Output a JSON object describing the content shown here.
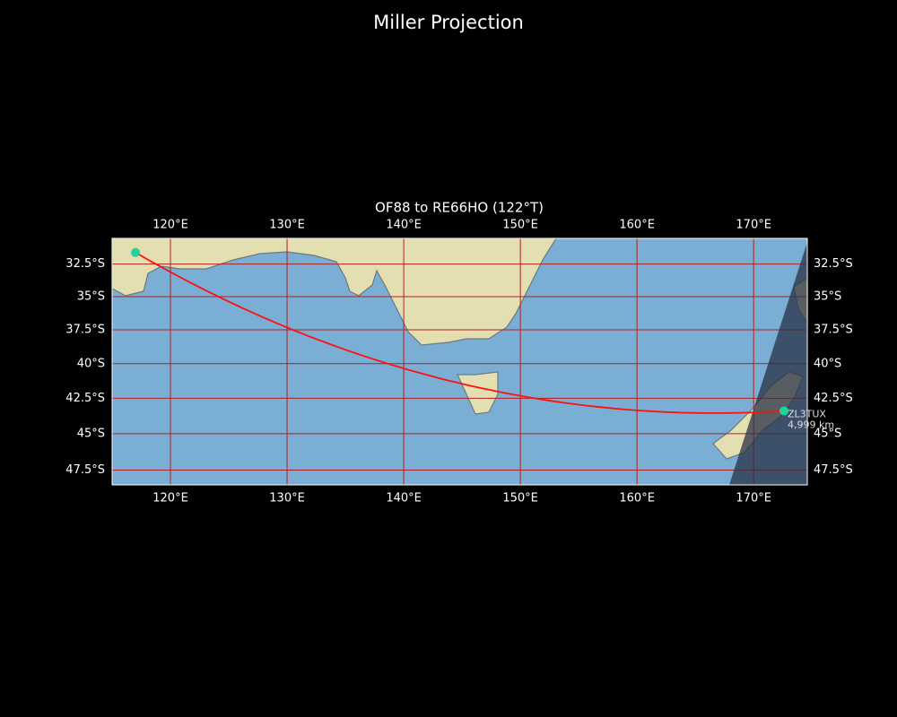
{
  "chart_data": {
    "type": "map",
    "projection": "miller",
    "title": "Miller Projection",
    "subtitle": "OF88 to RE66HO (122°T)",
    "xlim": [
      115,
      174.6
    ],
    "ylim": [
      -48.5,
      -30.5
    ],
    "xticks": [
      {
        "value": 120,
        "label": "120°E"
      },
      {
        "value": 130,
        "label": "130°E"
      },
      {
        "value": 140,
        "label": "140°E"
      },
      {
        "value": 150,
        "label": "150°E"
      },
      {
        "value": 160,
        "label": "160°E"
      },
      {
        "value": 170,
        "label": "170°E"
      }
    ],
    "yticks": [
      {
        "value": -32.5,
        "label": "32.5°S"
      },
      {
        "value": -35,
        "label": "35°S"
      },
      {
        "value": -37.5,
        "label": "37.5°S"
      },
      {
        "value": -40,
        "label": "40°S"
      },
      {
        "value": -42.5,
        "label": "42.5°S"
      },
      {
        "value": -45,
        "label": "45°S"
      },
      {
        "value": -47.5,
        "label": "47.5°S"
      }
    ],
    "grid": true,
    "grid_color": "#b02020",
    "path_color": "#ff1010",
    "marker_color": "#1fd39a",
    "points": [
      {
        "lon": 117.0,
        "lat": -31.6
      },
      {
        "lon": 172.6,
        "lat": -43.4,
        "label": "ZL3TUX",
        "distance": "4,999 km"
      }
    ]
  }
}
